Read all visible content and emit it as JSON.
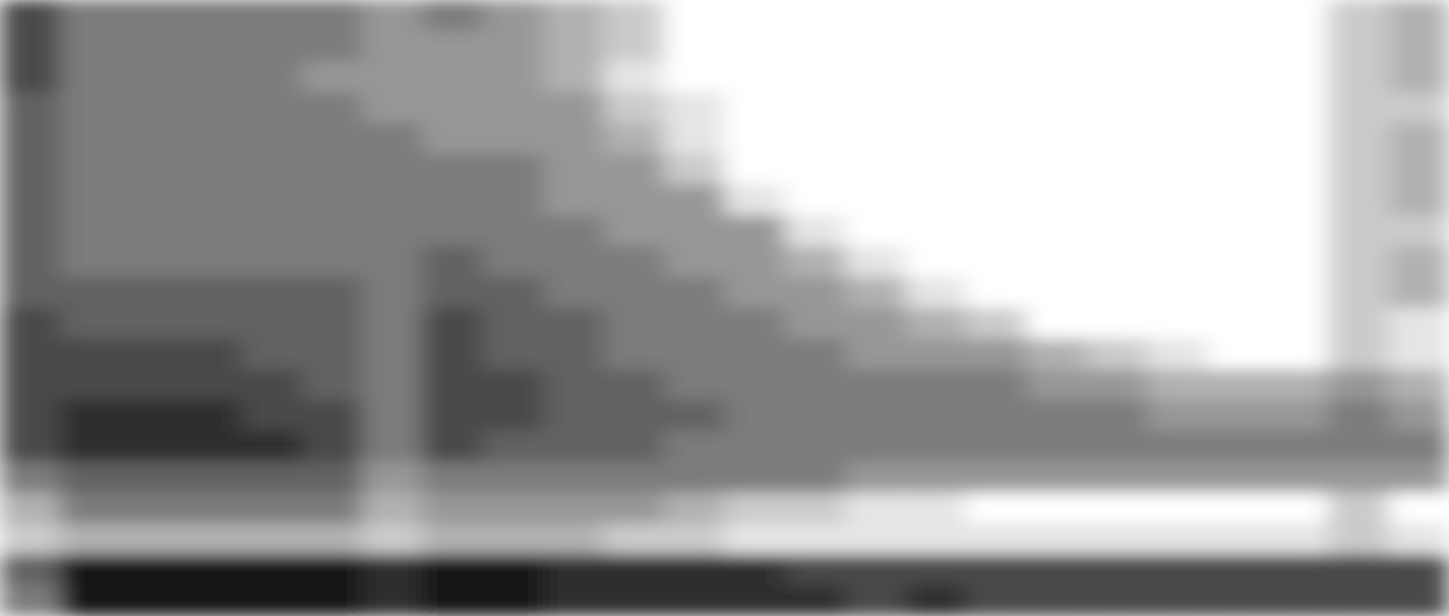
{
  "chart_data": {
    "type": "heatmap",
    "tick_labels": false,
    "zlim": [
      0,
      9
    ],
    "cells": [
      [
        7,
        5,
        5,
        5,
        5,
        5,
        4,
        5,
        4,
        3,
        2,
        0,
        0,
        0,
        0,
        0,
        0,
        0,
        0,
        0,
        0,
        0,
        2,
        3
      ],
      [
        7,
        5,
        5,
        5,
        5,
        5,
        4,
        4,
        4,
        3,
        2,
        0,
        0,
        0,
        0,
        0,
        0,
        0,
        0,
        0,
        0,
        0,
        2,
        3
      ],
      [
        7,
        5,
        5,
        5,
        5,
        4,
        4,
        4,
        4,
        3,
        1,
        0,
        0,
        0,
        0,
        0,
        0,
        0,
        0,
        0,
        0,
        0,
        2,
        3
      ],
      [
        6,
        5,
        5,
        5,
        5,
        5,
        4,
        4,
        4,
        4,
        2,
        1,
        0,
        0,
        0,
        0,
        0,
        0,
        0,
        0,
        0,
        0,
        2,
        2
      ],
      [
        6,
        5,
        5,
        5,
        5,
        5,
        5,
        4,
        4,
        4,
        3,
        1,
        0,
        0,
        0,
        0,
        0,
        0,
        0,
        0,
        0,
        0,
        2,
        3
      ],
      [
        6,
        5,
        5,
        5,
        5,
        5,
        5,
        5,
        5,
        4,
        4,
        2,
        0,
        0,
        0,
        0,
        0,
        0,
        0,
        0,
        0,
        0,
        2,
        3
      ],
      [
        6,
        5,
        5,
        5,
        5,
        5,
        5,
        5,
        5,
        4,
        4,
        4,
        1,
        0,
        0,
        0,
        0,
        0,
        0,
        0,
        0,
        0,
        2,
        3
      ],
      [
        6,
        5,
        5,
        5,
        5,
        5,
        5,
        5,
        5,
        5,
        4,
        4,
        4,
        1,
        0,
        0,
        0,
        0,
        0,
        0,
        0,
        0,
        2,
        2
      ],
      [
        6,
        5,
        5,
        5,
        5,
        5,
        5,
        6,
        5,
        5,
        5,
        4,
        4,
        3,
        1,
        0,
        0,
        0,
        0,
        0,
        0,
        0,
        2,
        3
      ],
      [
        6,
        6,
        6,
        6,
        6,
        6,
        5,
        6,
        6,
        5,
        5,
        5,
        4,
        4,
        3,
        1,
        0,
        0,
        0,
        0,
        0,
        0,
        2,
        3
      ],
      [
        7,
        6,
        6,
        6,
        6,
        6,
        5,
        7,
        6,
        6,
        5,
        5,
        5,
        4,
        4,
        3,
        2,
        0,
        0,
        0,
        0,
        0,
        2,
        1
      ],
      [
        7,
        7,
        7,
        7,
        6,
        6,
        5,
        7,
        6,
        6,
        5,
        5,
        5,
        5,
        4,
        4,
        4,
        3,
        2,
        1,
        0,
        0,
        2,
        1
      ],
      [
        7,
        7,
        7,
        7,
        7,
        6,
        5,
        7,
        7,
        6,
        6,
        5,
        5,
        5,
        5,
        5,
        5,
        4,
        4,
        3,
        3,
        3,
        4,
        3
      ],
      [
        7,
        8,
        8,
        8,
        7,
        7,
        5,
        7,
        7,
        6,
        6,
        6,
        5,
        5,
        5,
        5,
        5,
        5,
        5,
        4,
        4,
        4,
        5,
        4
      ],
      [
        7,
        8,
        8,
        8,
        8,
        7,
        5,
        7,
        6,
        6,
        6,
        5,
        5,
        5,
        5,
        5,
        5,
        5,
        5,
        5,
        5,
        5,
        5,
        5
      ],
      [
        5,
        6,
        6,
        6,
        6,
        6,
        4,
        5,
        5,
        5,
        5,
        5,
        5,
        5,
        4,
        4,
        4,
        4,
        4,
        4,
        4,
        4,
        4,
        4
      ],
      [
        3,
        5,
        5,
        5,
        5,
        5,
        3,
        4,
        4,
        4,
        4,
        3,
        2,
        2,
        1,
        1,
        0,
        0,
        0,
        0,
        0,
        0,
        2,
        0
      ],
      [
        2,
        3,
        3,
        3,
        3,
        3,
        2,
        3,
        3,
        3,
        2,
        2,
        1,
        1,
        1,
        1,
        1,
        1,
        1,
        1,
        1,
        1,
        2,
        1
      ],
      [
        6,
        9,
        9,
        9,
        9,
        9,
        8,
        9,
        9,
        8,
        8,
        8,
        8,
        7,
        7,
        7,
        7,
        7,
        7,
        7,
        7,
        7,
        7,
        7
      ],
      [
        5,
        9,
        9,
        9,
        9,
        9,
        8,
        9,
        9,
        8,
        8,
        8,
        8,
        8,
        7,
        8,
        7,
        7,
        7,
        7,
        7,
        7,
        7,
        7
      ]
    ]
  }
}
